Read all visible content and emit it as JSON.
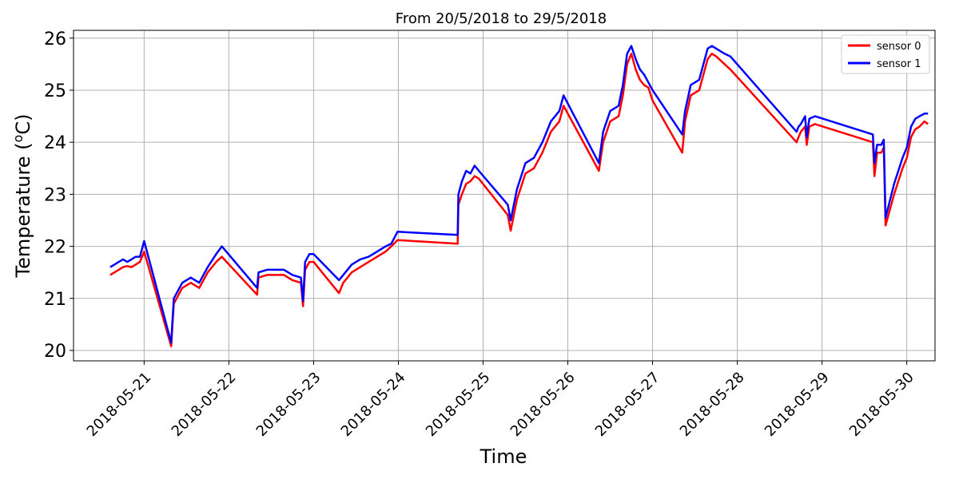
{
  "chart_data": {
    "type": "line",
    "title": "From 20/5/2018  to 29/5/2018",
    "xlabel": "Time",
    "ylabel_main": "Temperature (",
    "ylabel_sup": "o",
    "ylabel_unit": "C)",
    "xlim": [
      "2018-05-20T04:00",
      "2018-05-30T08:00"
    ],
    "ylim": [
      19.8,
      26.15
    ],
    "grid": true,
    "legend_position": "top-right",
    "x_ticks": [
      "2018-05-21",
      "2018-05-22",
      "2018-05-23",
      "2018-05-24",
      "2018-05-25",
      "2018-05-26",
      "2018-05-27",
      "2018-05-28",
      "2018-05-29",
      "2018-05-30"
    ],
    "y_ticks": [
      20,
      21,
      22,
      23,
      24,
      25,
      26
    ],
    "series": [
      {
        "name": "sensor 0",
        "color": "#ff0000",
        "x": [
          "2018-05-20T14:24",
          "2018-05-20T15:36",
          "2018-05-20T16:48",
          "2018-05-20T18:00",
          "2018-05-20T19:12",
          "2018-05-20T20:24",
          "2018-05-20T21:36",
          "2018-05-20T22:48",
          "2018-05-21T00:00",
          "2018-05-21T07:40",
          "2018-05-21T08:24",
          "2018-05-21T10:48",
          "2018-05-21T13:12",
          "2018-05-21T15:36",
          "2018-05-21T18:00",
          "2018-05-21T20:24",
          "2018-05-21T22:00",
          "2018-05-22T08:00",
          "2018-05-22T08:24",
          "2018-05-22T10:48",
          "2018-05-22T13:12",
          "2018-05-22T15:36",
          "2018-05-22T18:00",
          "2018-05-22T20:24",
          "2018-05-22T21:00",
          "2018-05-22T21:36",
          "2018-05-22T22:48",
          "2018-05-23T00:00",
          "2018-05-23T07:12",
          "2018-05-23T08:24",
          "2018-05-23T10:48",
          "2018-05-23T13:12",
          "2018-05-23T15:36",
          "2018-05-23T18:00",
          "2018-05-23T20:24",
          "2018-05-23T22:00",
          "2018-05-23T23:45",
          "2018-05-24T16:48",
          "2018-05-24T17:00",
          "2018-05-24T18:00",
          "2018-05-24T19:12",
          "2018-05-24T20:24",
          "2018-05-24T21:36",
          "2018-05-24T22:48",
          "2018-05-25T07:00",
          "2018-05-25T07:48",
          "2018-05-25T09:36",
          "2018-05-25T12:00",
          "2018-05-25T14:24",
          "2018-05-25T16:48",
          "2018-05-25T19:12",
          "2018-05-25T21:36",
          "2018-05-25T22:48",
          "2018-05-26T08:48",
          "2018-05-26T10:00",
          "2018-05-26T12:00",
          "2018-05-26T14:24",
          "2018-05-26T15:36",
          "2018-05-26T16:48",
          "2018-05-26T18:00",
          "2018-05-26T19:12",
          "2018-05-26T20:24",
          "2018-05-26T21:36",
          "2018-05-26T22:48",
          "2018-05-27T00:00",
          "2018-05-27T08:24",
          "2018-05-27T09:12",
          "2018-05-27T10:48",
          "2018-05-27T13:12",
          "2018-05-27T15:36",
          "2018-05-27T16:48",
          "2018-05-27T18:00",
          "2018-05-27T20:24",
          "2018-05-27T22:00",
          "2018-05-28T16:48",
          "2018-05-28T17:20",
          "2018-05-28T18:00",
          "2018-05-28T19:12",
          "2018-05-28T19:40",
          "2018-05-28T20:24",
          "2018-05-28T22:00",
          "2018-05-29T14:24",
          "2018-05-29T14:50",
          "2018-05-29T15:36",
          "2018-05-29T16:48",
          "2018-05-29T17:30",
          "2018-05-29T18:00",
          "2018-05-29T20:24",
          "2018-05-29T22:48",
          "2018-05-30T00:00",
          "2018-05-30T01:12",
          "2018-05-30T02:24",
          "2018-05-30T03:36",
          "2018-05-30T05:00",
          "2018-05-30T06:00"
        ],
        "y": [
          21.45,
          21.5,
          21.55,
          21.6,
          21.62,
          21.6,
          21.65,
          21.7,
          21.9,
          20.08,
          20.9,
          21.2,
          21.3,
          21.2,
          21.5,
          21.7,
          21.8,
          21.07,
          21.4,
          21.45,
          21.45,
          21.45,
          21.35,
          21.3,
          20.85,
          21.55,
          21.7,
          21.7,
          21.1,
          21.3,
          21.5,
          21.6,
          21.7,
          21.8,
          21.9,
          22.0,
          22.12,
          22.05,
          22.8,
          23.0,
          23.2,
          23.25,
          23.35,
          23.3,
          22.6,
          22.3,
          22.9,
          23.4,
          23.5,
          23.8,
          24.2,
          24.4,
          24.7,
          23.45,
          24.0,
          24.4,
          24.5,
          24.9,
          25.5,
          25.7,
          25.4,
          25.2,
          25.1,
          25.05,
          24.8,
          23.8,
          24.4,
          24.9,
          25.0,
          25.6,
          25.7,
          25.65,
          25.5,
          25.4,
          24.0,
          24.1,
          24.2,
          24.3,
          23.95,
          24.3,
          24.35,
          24.0,
          23.35,
          23.8,
          23.8,
          23.9,
          22.4,
          23.0,
          23.5,
          23.7,
          24.1,
          24.25,
          24.3,
          24.4,
          24.35
        ]
      },
      {
        "name": "sensor 1",
        "color": "#0000ff",
        "x": [
          "2018-05-20T14:24",
          "2018-05-20T15:36",
          "2018-05-20T16:48",
          "2018-05-20T18:00",
          "2018-05-20T19:12",
          "2018-05-20T20:24",
          "2018-05-20T21:36",
          "2018-05-20T22:48",
          "2018-05-21T00:00",
          "2018-05-21T07:40",
          "2018-05-21T08:24",
          "2018-05-21T10:48",
          "2018-05-21T13:12",
          "2018-05-21T15:36",
          "2018-05-21T18:00",
          "2018-05-21T20:24",
          "2018-05-21T22:00",
          "2018-05-22T08:00",
          "2018-05-22T08:24",
          "2018-05-22T10:48",
          "2018-05-22T13:12",
          "2018-05-22T15:36",
          "2018-05-22T18:00",
          "2018-05-22T20:24",
          "2018-05-22T21:00",
          "2018-05-22T21:36",
          "2018-05-22T22:48",
          "2018-05-23T00:00",
          "2018-05-23T07:12",
          "2018-05-23T08:24",
          "2018-05-23T10:48",
          "2018-05-23T13:12",
          "2018-05-23T15:36",
          "2018-05-23T18:00",
          "2018-05-23T20:24",
          "2018-05-23T22:00",
          "2018-05-23T23:45",
          "2018-05-24T16:48",
          "2018-05-24T17:00",
          "2018-05-24T18:00",
          "2018-05-24T19:12",
          "2018-05-24T20:24",
          "2018-05-24T21:36",
          "2018-05-24T22:48",
          "2018-05-25T07:00",
          "2018-05-25T07:48",
          "2018-05-25T09:36",
          "2018-05-25T12:00",
          "2018-05-25T14:24",
          "2018-05-25T16:48",
          "2018-05-25T19:12",
          "2018-05-25T21:36",
          "2018-05-25T22:48",
          "2018-05-26T08:48",
          "2018-05-26T10:00",
          "2018-05-26T12:00",
          "2018-05-26T14:24",
          "2018-05-26T15:36",
          "2018-05-26T16:48",
          "2018-05-26T18:00",
          "2018-05-26T19:12",
          "2018-05-26T20:24",
          "2018-05-26T21:36",
          "2018-05-26T22:48",
          "2018-05-27T00:00",
          "2018-05-27T08:24",
          "2018-05-27T09:12",
          "2018-05-27T10:48",
          "2018-05-27T13:12",
          "2018-05-27T15:36",
          "2018-05-27T16:48",
          "2018-05-27T18:00",
          "2018-05-27T20:24",
          "2018-05-27T22:00",
          "2018-05-28T16:48",
          "2018-05-28T17:20",
          "2018-05-28T18:00",
          "2018-05-28T19:12",
          "2018-05-28T19:40",
          "2018-05-28T20:24",
          "2018-05-28T22:00",
          "2018-05-29T14:24",
          "2018-05-29T14:50",
          "2018-05-29T15:36",
          "2018-05-29T16:48",
          "2018-05-29T17:30",
          "2018-05-29T18:00",
          "2018-05-29T20:24",
          "2018-05-29T22:48",
          "2018-05-30T00:00",
          "2018-05-30T01:12",
          "2018-05-30T02:24",
          "2018-05-30T03:36",
          "2018-05-30T05:00",
          "2018-05-30T06:00"
        ],
        "y": [
          21.6,
          21.65,
          21.7,
          21.75,
          21.7,
          21.75,
          21.8,
          21.8,
          22.1,
          20.15,
          21.0,
          21.3,
          21.4,
          21.3,
          21.6,
          21.85,
          22.0,
          21.2,
          21.5,
          21.55,
          21.55,
          21.55,
          21.45,
          21.4,
          20.95,
          21.7,
          21.85,
          21.85,
          21.35,
          21.45,
          21.65,
          21.75,
          21.8,
          21.9,
          22.0,
          22.05,
          22.28,
          22.22,
          23.0,
          23.25,
          23.45,
          23.4,
          23.55,
          23.45,
          22.8,
          22.5,
          23.1,
          23.6,
          23.7,
          24.0,
          24.4,
          24.6,
          24.9,
          23.6,
          24.2,
          24.6,
          24.7,
          25.1,
          25.7,
          25.85,
          25.6,
          25.4,
          25.3,
          25.15,
          25.0,
          24.15,
          24.6,
          25.1,
          25.2,
          25.8,
          25.85,
          25.8,
          25.7,
          25.65,
          24.2,
          24.3,
          24.35,
          24.5,
          24.1,
          24.45,
          24.5,
          24.15,
          23.6,
          23.95,
          23.95,
          24.05,
          22.55,
          23.2,
          23.7,
          23.9,
          24.3,
          24.45,
          24.5,
          24.55,
          24.55
        ]
      }
    ]
  }
}
